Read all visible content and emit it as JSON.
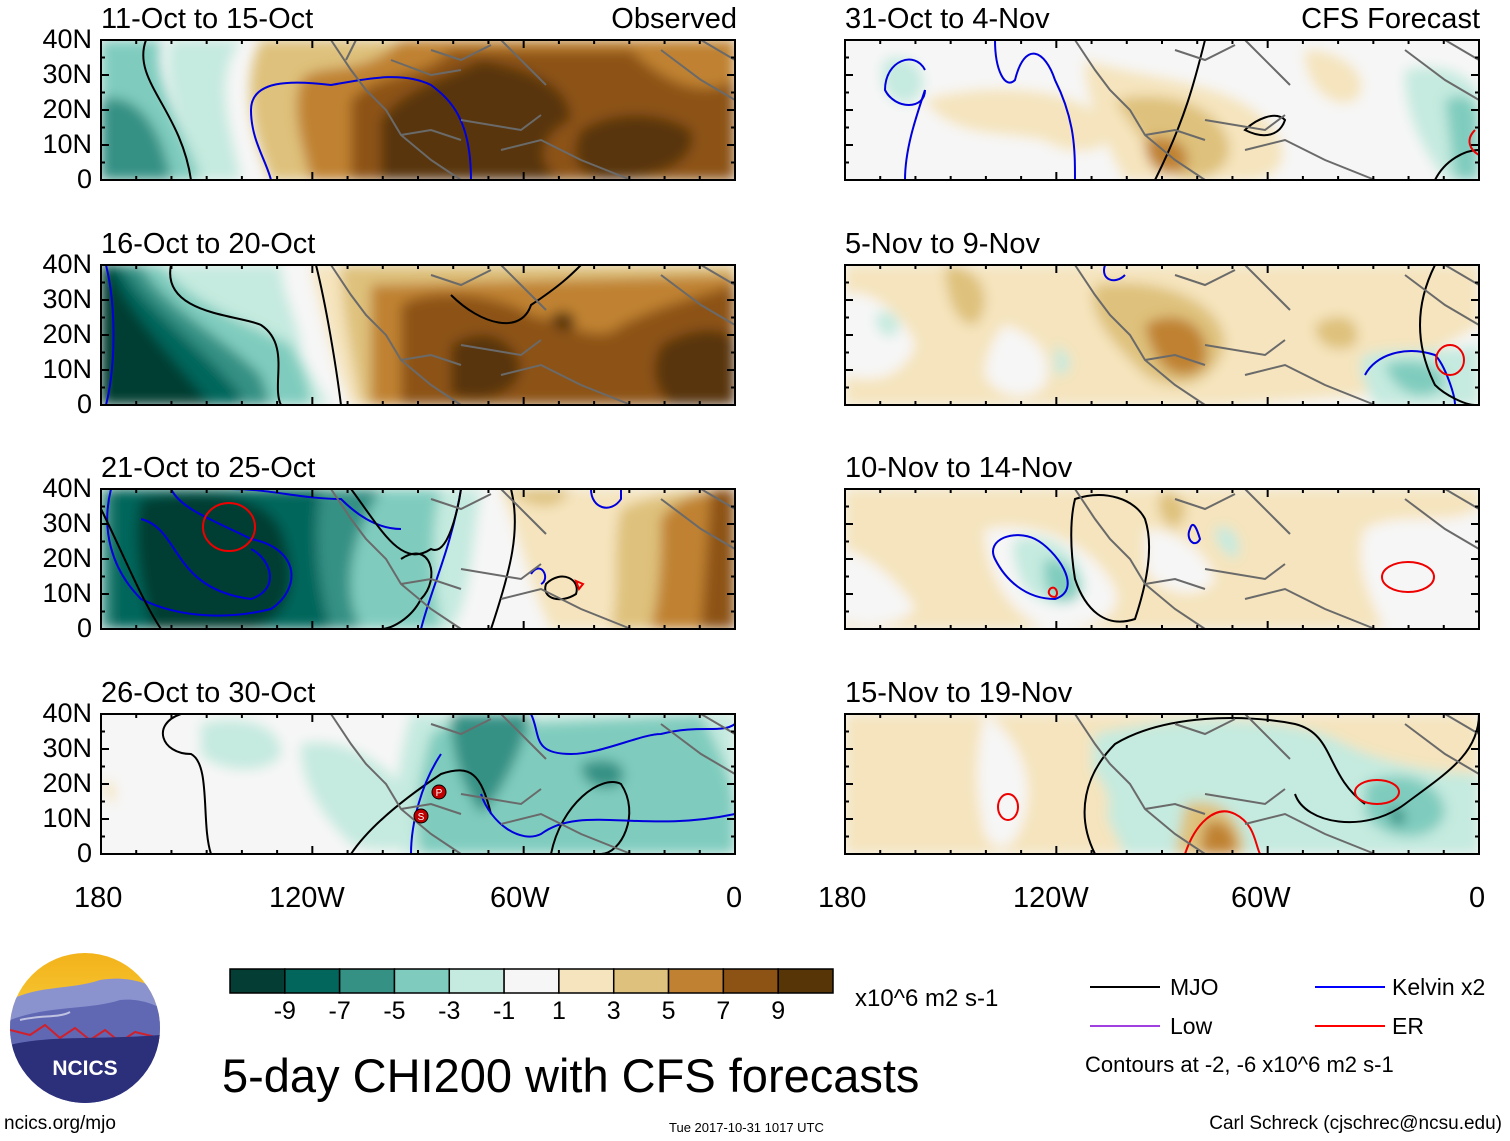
{
  "title": "5-day CHI200 with CFS forecasts",
  "observed_label": "Observed",
  "forecast_label": "CFS Forecast",
  "panels": [
    {
      "period": "11-Oct to 15-Oct",
      "source": "observed"
    },
    {
      "period": "16-Oct to 20-Oct",
      "source": "observed"
    },
    {
      "period": "21-Oct to 25-Oct",
      "source": "observed"
    },
    {
      "period": "26-Oct to 30-Oct",
      "source": "observed"
    },
    {
      "period": "31-Oct to 4-Nov",
      "source": "forecast"
    },
    {
      "period": "5-Nov to 9-Nov",
      "source": "forecast"
    },
    {
      "period": "10-Nov to 14-Nov",
      "source": "forecast"
    },
    {
      "period": "15-Nov to 19-Nov",
      "source": "forecast"
    }
  ],
  "y_axis_labels": [
    "40N",
    "30N",
    "20N",
    "10N",
    "0"
  ],
  "x_axis_labels": [
    "180",
    "120W",
    "60W",
    "0"
  ],
  "colorbar": {
    "ticks": [
      "-9",
      "-7",
      "-5",
      "-3",
      "-1",
      "1",
      "3",
      "5",
      "7",
      "9"
    ],
    "units": "x10^6 m2 s-1",
    "colors": [
      "#033d33",
      "#03665c",
      "#349184",
      "#7fccbe",
      "#c5eadf",
      "#f6f6f6",
      "#f5e4bd",
      "#dec17c",
      "#c08232",
      "#8d5314",
      "#583507"
    ]
  },
  "legend": {
    "items": [
      {
        "label": "MJO",
        "color": "#000000"
      },
      {
        "label": "Kelvin x2",
        "color": "#0000ff"
      },
      {
        "label": "Low",
        "color": "#a040e0"
      },
      {
        "label": "ER",
        "color": "#ff0000"
      }
    ],
    "contour_note": "Contours at -2, -6 x10^6 m2 s-1"
  },
  "logo_text": "NCICS",
  "footer": {
    "left": "ncics.org/mjo",
    "center": "Tue 2017-10-31 1017 UTC",
    "right": "Carl Schreck (cjschrec@ncsu.edu)"
  },
  "storm_markers": [
    "P",
    "S"
  ]
}
